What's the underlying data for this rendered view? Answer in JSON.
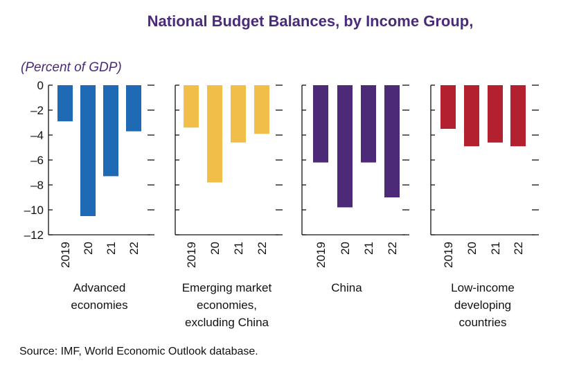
{
  "chart_data": {
    "type": "bar",
    "title": "National Budget Balances, by Income Group,",
    "ylabel": "(Percent of GDP)",
    "ylim": [
      -12,
      0
    ],
    "yticks": [
      0,
      -2,
      -4,
      -6,
      -8,
      -10,
      -12
    ],
    "ytick_labels": [
      "0",
      "–2",
      "–4",
      "–6",
      "–8",
      "–10",
      "–12"
    ],
    "categories": [
      "2019",
      "20",
      "21",
      "22"
    ],
    "series": [
      {
        "name": "Advanced economies",
        "label_lines": [
          "Advanced",
          "economies"
        ],
        "color": "#1f6ab4",
        "values": [
          -2.9,
          -10.5,
          -7.3,
          -3.7
        ]
      },
      {
        "name": "Emerging market economies, excluding China",
        "label_lines": [
          "Emerging market",
          "economies,",
          "excluding China"
        ],
        "color": "#f2be4a",
        "values": [
          -3.4,
          -7.8,
          -4.6,
          -3.9
        ]
      },
      {
        "name": "China",
        "label_lines": [
          "China"
        ],
        "color": "#4d2a78",
        "values": [
          -6.2,
          -9.8,
          -6.2,
          -9.0
        ]
      },
      {
        "name": "Low-income developing countries",
        "label_lines": [
          "Low-income",
          "developing",
          "countries"
        ],
        "color": "#b32030",
        "values": [
          -3.5,
          -4.9,
          -4.6,
          -4.9
        ]
      }
    ],
    "source": "Source: IMF, World Economic Outlook database."
  }
}
